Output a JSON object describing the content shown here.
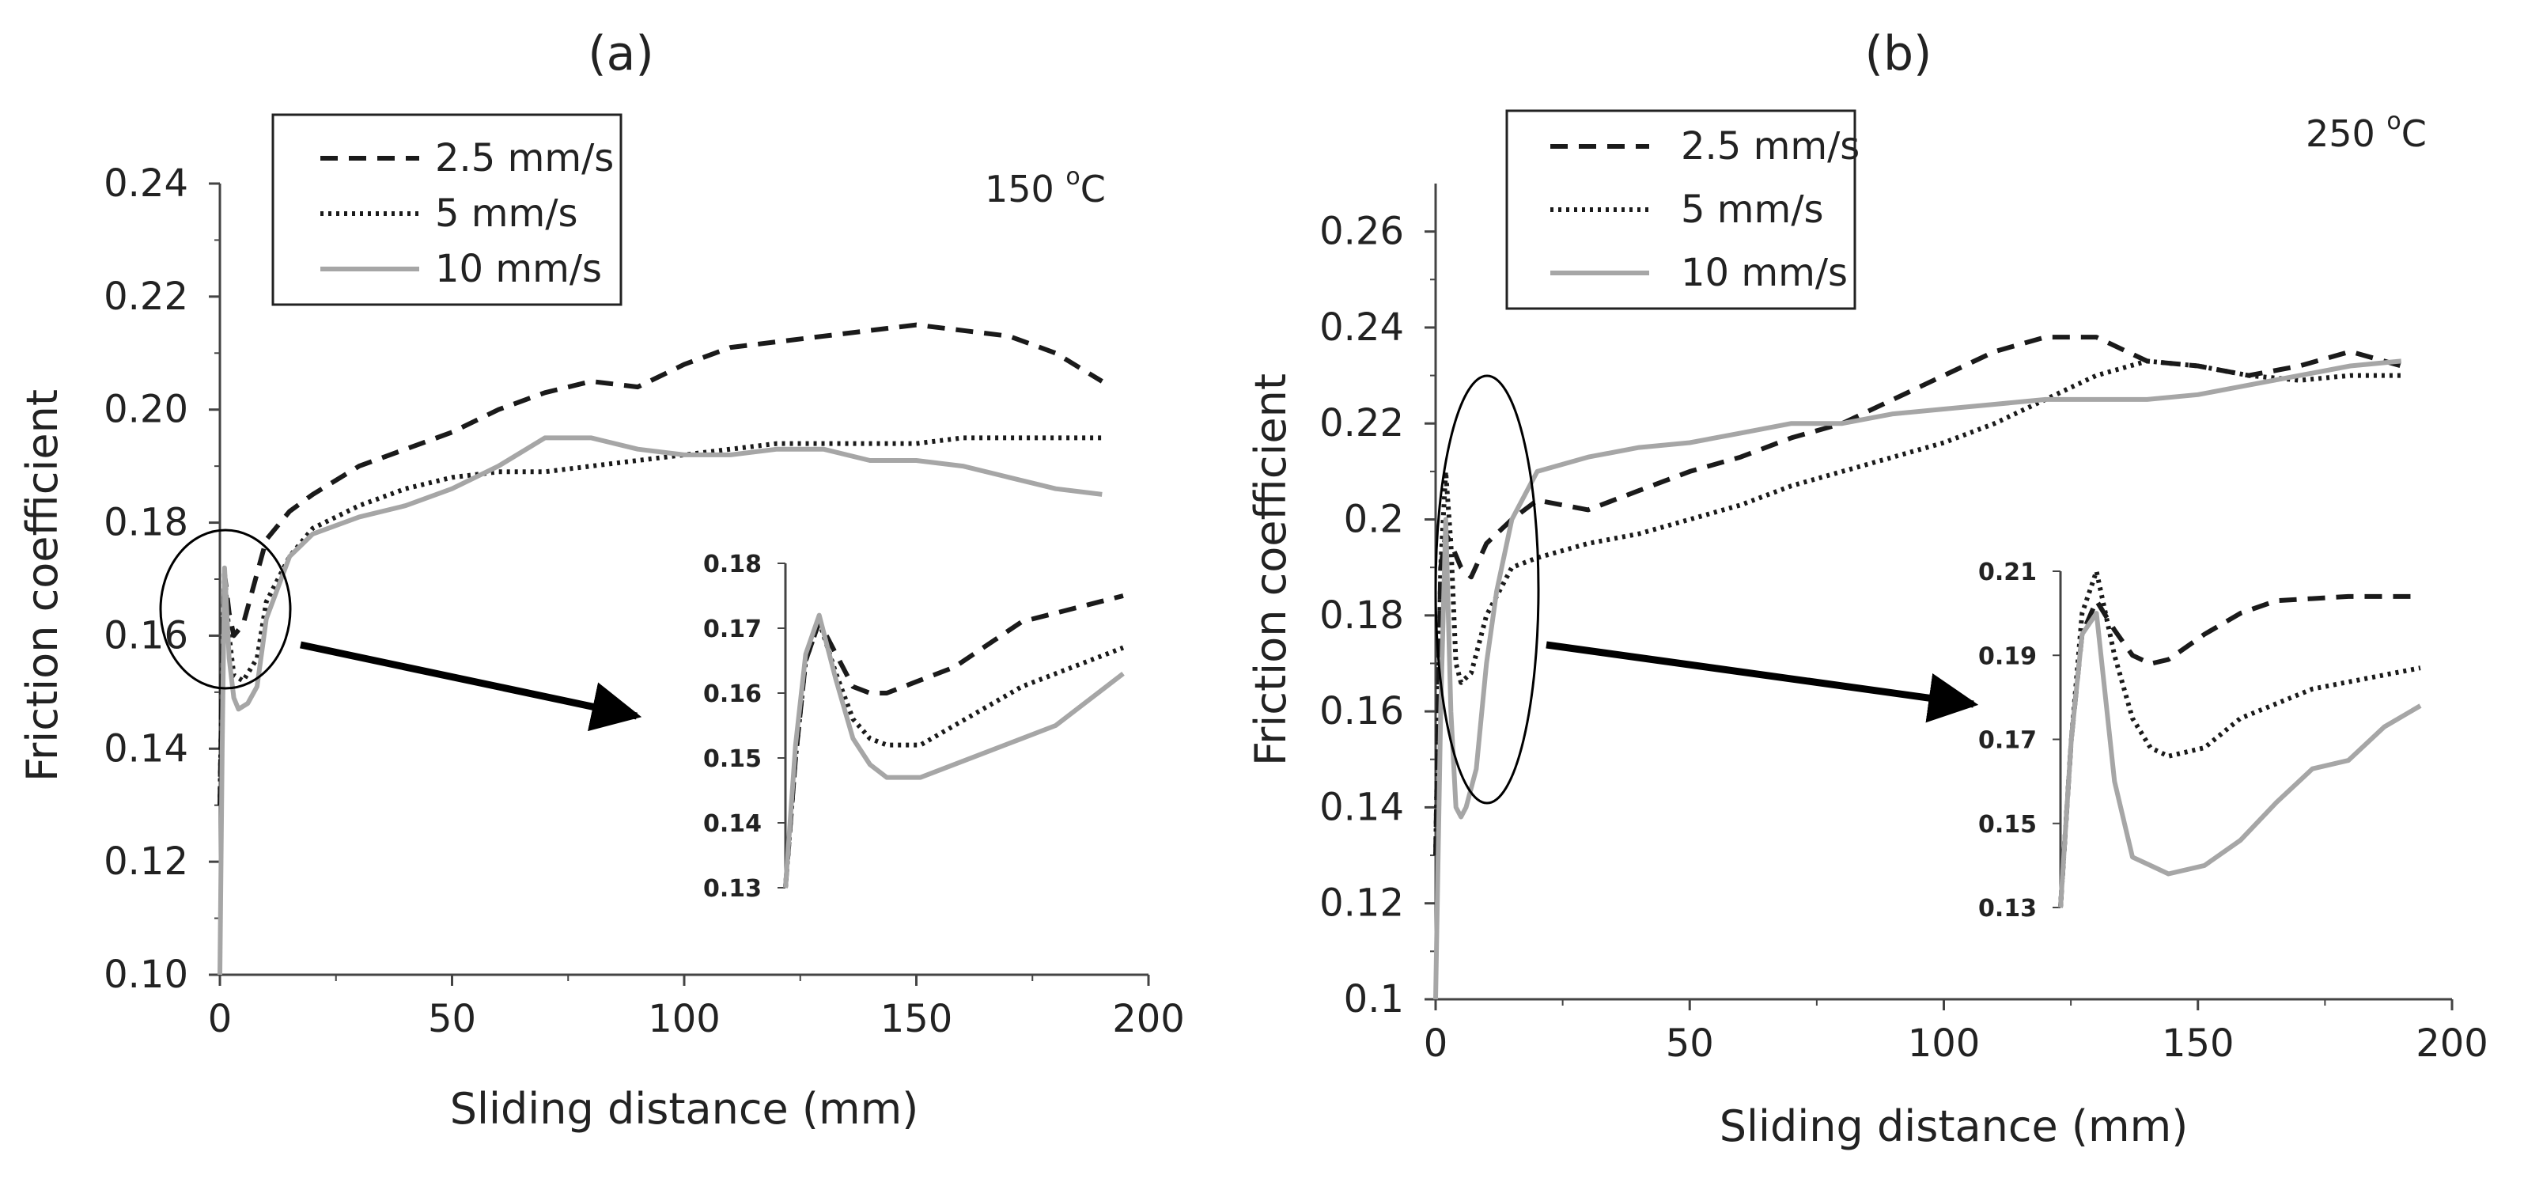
{
  "chart_data": [
    {
      "type": "line",
      "panel_label": "(a)",
      "temperature": {
        "value": "150 ",
        "degree": "o",
        "unit": "C"
      },
      "xlabel": "Sliding distance (mm)",
      "ylabel": "Friction coefficient",
      "xlim": [
        0,
        200
      ],
      "ylim": [
        0.1,
        0.24
      ],
      "x_ticks": [
        "0",
        "50",
        "100",
        "150",
        "200"
      ],
      "y_ticks": [
        "0.10",
        "0.12",
        "0.14",
        "0.16",
        "0.18",
        "0.20",
        "0.22",
        "0.24"
      ],
      "legend": [
        "2.5 mm/s",
        "5 mm/s",
        "10 mm/s"
      ],
      "series": [
        {
          "name": "2.5 mm/s",
          "style": "dashed",
          "color": "#1a1a1a",
          "x": [
            0,
            0.5,
            1,
            2,
            3,
            5,
            7,
            10,
            15,
            20,
            30,
            40,
            50,
            60,
            70,
            80,
            90,
            100,
            110,
            120,
            130,
            140,
            150,
            160,
            170,
            180,
            190
          ],
          "y": [
            0.13,
            0.155,
            0.171,
            0.164,
            0.16,
            0.162,
            0.168,
            0.177,
            0.182,
            0.185,
            0.19,
            0.193,
            0.196,
            0.2,
            0.203,
            0.205,
            0.204,
            0.208,
            0.211,
            0.212,
            0.213,
            0.214,
            0.215,
            0.214,
            0.213,
            0.21,
            0.205
          ]
        },
        {
          "name": "5 mm/s",
          "style": "dotted",
          "color": "#1a1a1a",
          "x": [
            0,
            0.5,
            1,
            2,
            3,
            5,
            8,
            10,
            15,
            20,
            30,
            40,
            50,
            60,
            70,
            80,
            90,
            100,
            110,
            120,
            130,
            140,
            150,
            160,
            170,
            180,
            190
          ],
          "y": [
            0.13,
            0.155,
            0.171,
            0.16,
            0.153,
            0.152,
            0.156,
            0.166,
            0.174,
            0.179,
            0.183,
            0.186,
            0.188,
            0.189,
            0.189,
            0.19,
            0.191,
            0.192,
            0.193,
            0.194,
            0.194,
            0.194,
            0.194,
            0.195,
            0.195,
            0.195,
            0.195
          ]
        },
        {
          "name": "10 mm/s",
          "style": "solid",
          "color": "#a6a6a6",
          "x": [
            0,
            0.5,
            1,
            2,
            3,
            4,
            6,
            8,
            10,
            15,
            20,
            30,
            40,
            50,
            60,
            70,
            80,
            90,
            100,
            110,
            120,
            130,
            140,
            150,
            160,
            170,
            180,
            190
          ],
          "y": [
            0.1,
            0.14,
            0.172,
            0.156,
            0.149,
            0.147,
            0.148,
            0.151,
            0.163,
            0.174,
            0.178,
            0.181,
            0.183,
            0.186,
            0.19,
            0.195,
            0.195,
            0.193,
            0.192,
            0.192,
            0.193,
            0.193,
            0.191,
            0.191,
            0.19,
            0.188,
            0.186,
            0.185
          ]
        }
      ],
      "inset": {
        "ylim": [
          0.13,
          0.18
        ],
        "y_ticks": [
          "0.13",
          "0.14",
          "0.15",
          "0.16",
          "0.17",
          "0.18"
        ],
        "series": [
          {
            "name": "2.5 mm/s",
            "style": "dashed",
            "color": "#1a1a1a",
            "x": [
              0,
              0.3,
              0.6,
              1,
              1.5,
              2,
              2.5,
              3,
              4,
              5,
              7,
              10
            ],
            "y": [
              0.13,
              0.15,
              0.165,
              0.171,
              0.166,
              0.161,
              0.16,
              0.16,
              0.162,
              0.164,
              0.171,
              0.175
            ]
          },
          {
            "name": "5 mm/s",
            "style": "dotted",
            "color": "#1a1a1a",
            "x": [
              0,
              0.3,
              0.6,
              1,
              1.5,
              2,
              2.5,
              3,
              4,
              5,
              7,
              10
            ],
            "y": [
              0.13,
              0.15,
              0.165,
              0.171,
              0.163,
              0.156,
              0.153,
              0.152,
              0.152,
              0.155,
              0.161,
              0.167
            ]
          },
          {
            "name": "10 mm/s",
            "style": "solid",
            "color": "#a6a6a6",
            "x": [
              0,
              0.3,
              0.6,
              1,
              1.5,
              2,
              2.5,
              3,
              4,
              5,
              6,
              7,
              8,
              10
            ],
            "y": [
              0.13,
              0.152,
              0.166,
              0.172,
              0.162,
              0.153,
              0.149,
              0.147,
              0.147,
              0.149,
              0.151,
              0.153,
              0.155,
              0.163
            ]
          }
        ]
      }
    },
    {
      "type": "line",
      "panel_label": "(b)",
      "temperature": {
        "value": "250 ",
        "degree": "o",
        "unit": "C"
      },
      "xlabel": "Sliding distance (mm)",
      "ylabel": "Friction coefficient",
      "xlim": [
        0,
        200
      ],
      "ylim": [
        0.1,
        0.27
      ],
      "x_ticks": [
        "0",
        "50",
        "100",
        "150",
        "200"
      ],
      "y_ticks": [
        "0.1",
        "0.12",
        "0.14",
        "0.16",
        "0.18",
        "0.2",
        "0.22",
        "0.24",
        "0.26"
      ],
      "legend": [
        "2.5 mm/s",
        "5 mm/s",
        "10 mm/s"
      ],
      "series": [
        {
          "name": "2.5 mm/s",
          "style": "dashed",
          "color": "#1a1a1a",
          "x": [
            0,
            1,
            2,
            3,
            5,
            7,
            10,
            15,
            20,
            30,
            40,
            50,
            60,
            70,
            80,
            90,
            100,
            110,
            120,
            130,
            140,
            150,
            160,
            170,
            180,
            190
          ],
          "y": [
            0.13,
            0.19,
            0.197,
            0.195,
            0.19,
            0.188,
            0.195,
            0.2,
            0.204,
            0.202,
            0.206,
            0.21,
            0.213,
            0.217,
            0.22,
            0.225,
            0.23,
            0.235,
            0.238,
            0.238,
            0.233,
            0.232,
            0.23,
            0.232,
            0.235,
            0.232
          ]
        },
        {
          "name": "5 mm/s",
          "style": "dotted",
          "color": "#1a1a1a",
          "x": [
            0,
            1,
            2,
            3,
            4,
            5,
            7,
            10,
            15,
            20,
            30,
            40,
            50,
            60,
            70,
            80,
            90,
            100,
            110,
            120,
            130,
            140,
            150,
            160,
            170,
            180,
            190
          ],
          "y": [
            0.13,
            0.19,
            0.21,
            0.195,
            0.17,
            0.166,
            0.168,
            0.18,
            0.19,
            0.192,
            0.195,
            0.197,
            0.2,
            0.203,
            0.207,
            0.21,
            0.213,
            0.216,
            0.22,
            0.225,
            0.23,
            0.233,
            0.232,
            0.23,
            0.229,
            0.23,
            0.23
          ]
        },
        {
          "name": "10 mm/s",
          "style": "solid",
          "color": "#a6a6a6",
          "x": [
            0,
            1,
            2,
            3,
            4,
            5,
            6,
            8,
            10,
            12,
            15,
            20,
            30,
            40,
            50,
            60,
            70,
            80,
            90,
            100,
            110,
            120,
            130,
            140,
            150,
            160,
            170,
            180,
            190
          ],
          "y": [
            0.1,
            0.16,
            0.2,
            0.16,
            0.14,
            0.138,
            0.14,
            0.148,
            0.17,
            0.185,
            0.2,
            0.21,
            0.213,
            0.215,
            0.216,
            0.218,
            0.22,
            0.22,
            0.222,
            0.223,
            0.224,
            0.225,
            0.225,
            0.225,
            0.226,
            0.228,
            0.23,
            0.232,
            0.233
          ]
        }
      ],
      "inset": {
        "ylim": [
          0.13,
          0.21
        ],
        "y_ticks": [
          "0.13",
          "0.15",
          "0.17",
          "0.19",
          "0.21"
        ],
        "series": [
          {
            "name": "2.5 mm/s",
            "style": "dashed",
            "color": "#1a1a1a",
            "x": [
              0,
              0.3,
              0.6,
              1,
              1.5,
              2,
              2.5,
              3,
              4,
              5,
              6,
              8,
              10
            ],
            "y": [
              0.13,
              0.17,
              0.195,
              0.203,
              0.196,
              0.19,
              0.188,
              0.189,
              0.195,
              0.2,
              0.203,
              0.204,
              0.204
            ]
          },
          {
            "name": "5 mm/s",
            "style": "dotted",
            "color": "#1a1a1a",
            "x": [
              0,
              0.3,
              0.6,
              1,
              1.5,
              2,
              2.5,
              3,
              4,
              5,
              7,
              10
            ],
            "y": [
              0.13,
              0.17,
              0.2,
              0.21,
              0.19,
              0.175,
              0.168,
              0.166,
              0.168,
              0.175,
              0.182,
              0.187
            ]
          },
          {
            "name": "10 mm/s",
            "style": "solid",
            "color": "#a6a6a6",
            "x": [
              0,
              0.3,
              0.6,
              1,
              1.5,
              2,
              2.5,
              3,
              4,
              5,
              6,
              7,
              8,
              9,
              10
            ],
            "y": [
              0.13,
              0.17,
              0.195,
              0.2,
              0.16,
              0.142,
              0.14,
              0.138,
              0.14,
              0.146,
              0.155,
              0.163,
              0.165,
              0.173,
              0.178
            ]
          }
        ]
      }
    }
  ]
}
